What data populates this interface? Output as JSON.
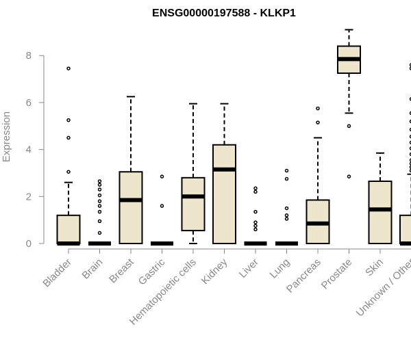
{
  "chart_data": {
    "type": "boxplot",
    "title": "ENSG00000197588 - KLKP1",
    "ylabel": "Expression",
    "xlabel": "",
    "ylim": [
      0,
      9.2
    ],
    "yticks": [
      0,
      2,
      4,
      6,
      8
    ],
    "grid": false,
    "box_color": "#ede6cc",
    "axis_color": "#888888",
    "categories": [
      "Bladder",
      "Brain",
      "Breast",
      "Gastric",
      "Hematopoietic cells",
      "Kidney",
      "Liver",
      "Lung",
      "Pancreas",
      "Prostate",
      "Skin",
      "Unknown / Other"
    ],
    "boxes": [
      {
        "name": "Bladder",
        "whisker_low": 0,
        "q1": 0,
        "median": 0,
        "q3": 1.2,
        "whisker_high": 2.6,
        "outliers": [
          3.05,
          4.5,
          5.25,
          7.45
        ]
      },
      {
        "name": "Brain",
        "whisker_low": 0,
        "q1": 0,
        "median": 0,
        "q3": 0,
        "whisker_high": 0,
        "outliers": [
          0.45,
          0.95,
          1.35,
          1.6,
          1.8,
          2.05,
          2.3,
          2.5,
          2.65
        ]
      },
      {
        "name": "Breast",
        "whisker_low": 0,
        "q1": 0,
        "median": 1.85,
        "q3": 3.05,
        "whisker_high": 6.25,
        "outliers": []
      },
      {
        "name": "Gastric",
        "whisker_low": 0,
        "q1": 0,
        "median": 0,
        "q3": 0,
        "whisker_high": 0,
        "outliers": [
          1.6,
          2.85
        ]
      },
      {
        "name": "Hematopoietic cells",
        "whisker_low": 0,
        "q1": 0.55,
        "median": 2.0,
        "q3": 2.8,
        "whisker_high": 5.95,
        "outliers": []
      },
      {
        "name": "Kidney",
        "whisker_low": 0,
        "q1": 0,
        "median": 3.15,
        "q3": 4.2,
        "whisker_high": 5.95,
        "outliers": []
      },
      {
        "name": "Liver",
        "whisker_low": 0,
        "q1": 0,
        "median": 0,
        "q3": 0,
        "whisker_high": 0,
        "outliers": [
          0.6,
          0.75,
          0.9,
          1.35,
          2.2,
          2.35
        ]
      },
      {
        "name": "Lung",
        "whisker_low": 0,
        "q1": 0,
        "median": 0,
        "q3": 0,
        "whisker_high": 0,
        "outliers": [
          1.05,
          1.2,
          1.5,
          2.75,
          3.1
        ]
      },
      {
        "name": "Pancreas",
        "whisker_low": 0,
        "q1": 0,
        "median": 0.85,
        "q3": 1.85,
        "whisker_high": 4.5,
        "outliers": [
          5.15,
          5.75
        ]
      },
      {
        "name": "Prostate",
        "whisker_low": 5.55,
        "q1": 7.25,
        "median": 7.85,
        "q3": 8.4,
        "whisker_high": 9.1,
        "outliers": [
          2.85,
          5.0
        ]
      },
      {
        "name": "Skin",
        "whisker_low": 0,
        "q1": 0,
        "median": 1.45,
        "q3": 2.65,
        "whisker_high": 3.85,
        "outliers": []
      },
      {
        "name": "Unknown / Other",
        "whisker_low": 0,
        "q1": 0,
        "median": 0,
        "q3": 1.2,
        "whisker_high": 2.95,
        "outliers": [
          3.1,
          3.25,
          3.4,
          3.55,
          3.8,
          4.05,
          4.3,
          4.55,
          4.85,
          5.2,
          5.55,
          6.15,
          7.45,
          7.6
        ]
      }
    ]
  }
}
